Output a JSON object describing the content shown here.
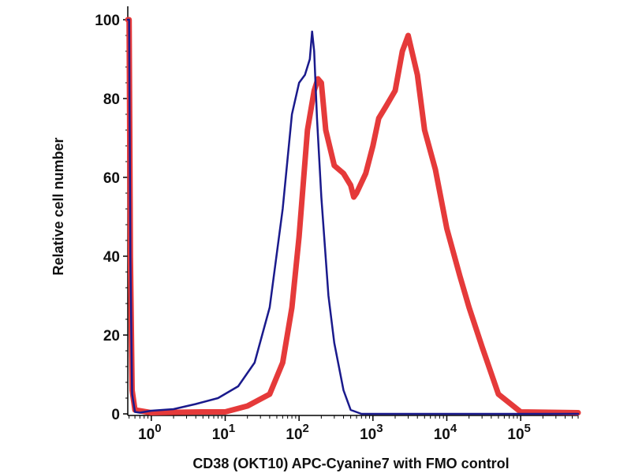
{
  "chart_data": {
    "type": "line",
    "title": "",
    "xlabel": "CD38 (OKT10) APC-Cyanine7 with FMO control",
    "ylabel": "Relative cell number",
    "x_scale": "log",
    "xlim": [
      0.48,
      600000
    ],
    "ylim": [
      0,
      100
    ],
    "x_ticks": [
      {
        "base": "10",
        "exp": "0",
        "value": 1
      },
      {
        "base": "10",
        "exp": "1",
        "value": 10
      },
      {
        "base": "10",
        "exp": "2",
        "value": 100
      },
      {
        "base": "10",
        "exp": "3",
        "value": 1000
      },
      {
        "base": "10",
        "exp": "4",
        "value": 10000
      },
      {
        "base": "10",
        "exp": "5",
        "value": 100000
      }
    ],
    "y_ticks": [
      {
        "label": "0",
        "value": 0
      },
      {
        "label": "20",
        "value": 20
      },
      {
        "label": "40",
        "value": 40
      },
      {
        "label": "60",
        "value": 60
      },
      {
        "label": "80",
        "value": 80
      },
      {
        "label": "100",
        "value": 100
      }
    ],
    "series": [
      {
        "name": "FMO control",
        "color": "#1a1a8c",
        "x": [
          0.48,
          0.5,
          0.52,
          0.55,
          0.6,
          0.7,
          1,
          2,
          4,
          8,
          15,
          25,
          40,
          60,
          80,
          100,
          120,
          140,
          150,
          160,
          175,
          200,
          250,
          300,
          400,
          500,
          700,
          1000,
          600000
        ],
        "values": [
          100,
          100,
          40,
          5,
          0.5,
          0.3,
          0.8,
          1.2,
          2.5,
          4,
          7,
          13,
          27,
          52,
          76,
          84,
          86,
          90,
          97,
          92,
          75,
          55,
          30,
          18,
          6,
          1,
          0,
          0,
          0
        ]
      },
      {
        "name": "CD38 APC-Cyanine7",
        "color": "#e53a3a",
        "x": [
          0.48,
          0.5,
          0.52,
          0.55,
          0.6,
          1,
          5,
          10,
          20,
          40,
          60,
          80,
          100,
          130,
          160,
          180,
          200,
          230,
          300,
          400,
          500,
          550,
          600,
          800,
          1000,
          1200,
          1500,
          2000,
          2500,
          3000,
          4000,
          5000,
          7000,
          10000,
          15000,
          20000,
          30000,
          50000,
          100000,
          600000
        ],
        "values": [
          100,
          100,
          40,
          6,
          1,
          0.3,
          0.5,
          0.5,
          2,
          5,
          13,
          27,
          45,
          72,
          82,
          85,
          84,
          72,
          63,
          61,
          58,
          55,
          56,
          61,
          68,
          75,
          78,
          82,
          92,
          96,
          86,
          72,
          62,
          47,
          35,
          27,
          17,
          5,
          0.5,
          0.3
        ]
      }
    ]
  }
}
